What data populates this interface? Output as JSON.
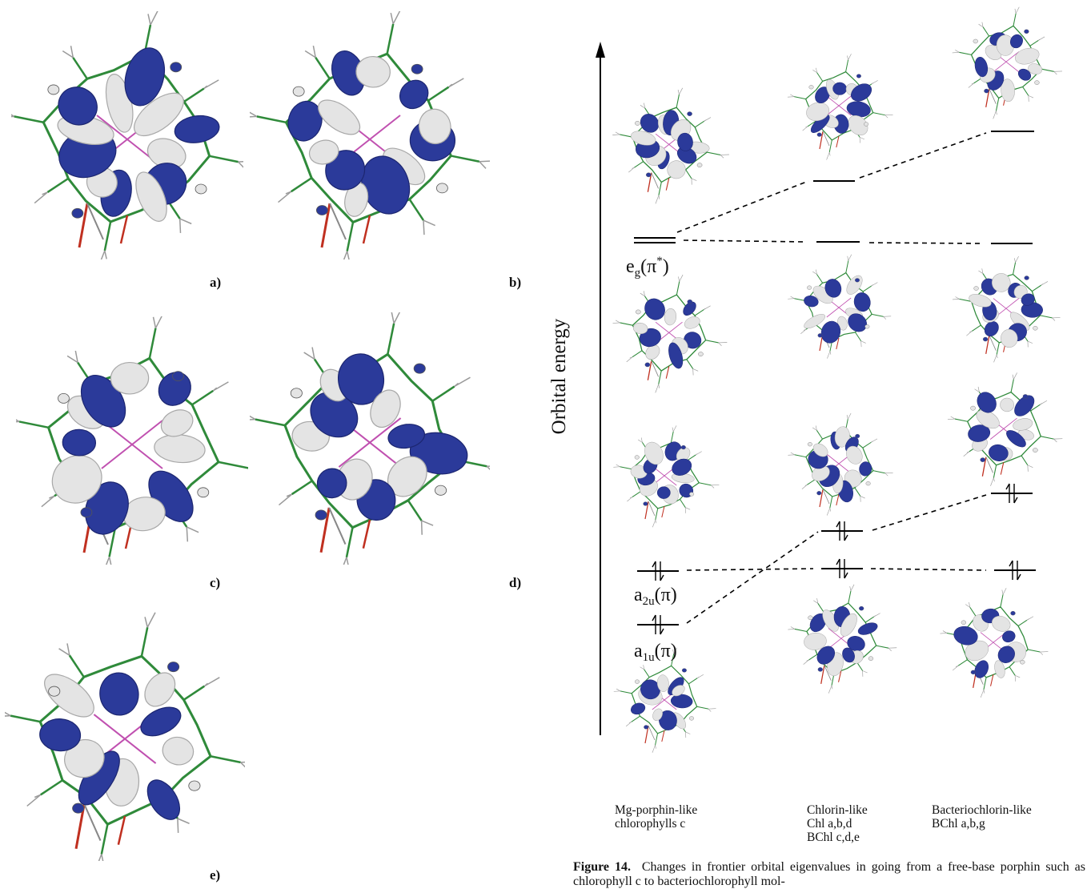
{
  "left_panels": [
    {
      "id": "a",
      "label": "a)"
    },
    {
      "id": "b",
      "label": "b)"
    },
    {
      "id": "c",
      "label": "c)"
    },
    {
      "id": "d",
      "label": "d)"
    },
    {
      "id": "e",
      "label": "e)"
    }
  ],
  "diagram": {
    "y_axis_label": "Orbital energy",
    "orbital_labels": {
      "eg": {
        "base": "e",
        "sub": "g",
        "sup": "*",
        "sym": "(π",
        "close": ")"
      },
      "a2u": {
        "base": "a",
        "sub": "2u",
        "sym": "(π)"
      },
      "a1u": {
        "base": "a",
        "sub": "1u",
        "sym": "(π)"
      }
    },
    "columns": [
      {
        "title": "Mg-porphin-like\nchlorophylls c"
      },
      {
        "title": "Chlorin-like\nChl a,b,d\nBChl c,d,e"
      },
      {
        "title": "Bacteriochlorin-like\nBChl a,b,g"
      }
    ]
  },
  "caption": {
    "figure": "Figure 14.",
    "text": "Changes in frontier orbital eigenvalues in going from a free-base porphin such as chlorophyll c to bacteriochlorophyll mol-"
  },
  "colors": {
    "lobe_blue": "#2b3a9a",
    "lobe_white": "#e4e4e4",
    "bond_green": "#2f8a3a",
    "metal_pink": "#c050b0"
  }
}
